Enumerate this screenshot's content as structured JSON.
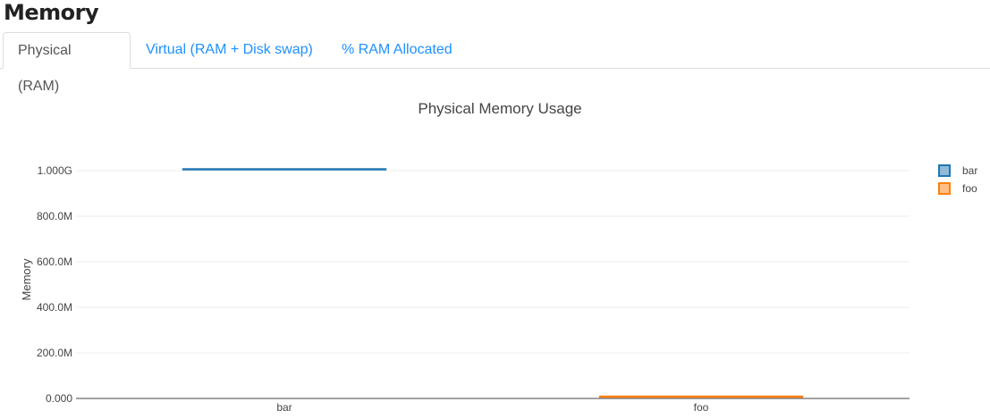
{
  "page_title": "Memory",
  "tabs": [
    {
      "label": "Physical (RAM)",
      "active": true
    },
    {
      "label": "Virtual (RAM + Disk swap)",
      "active": false
    },
    {
      "label": "% RAM Allocated",
      "active": false
    }
  ],
  "chart_data": {
    "type": "box",
    "title": "Physical Memory Usage",
    "xlabel": "",
    "ylabel": "Memory",
    "categories": [
      "bar",
      "foo"
    ],
    "series": [
      {
        "name": "bar",
        "category": "bar",
        "values": [
          1006000000
        ],
        "color": "#1f77b4"
      },
      {
        "name": "foo",
        "category": "foo",
        "values": [
          8000000
        ],
        "color": "#ff7f0e"
      }
    ],
    "yticks": [
      0,
      200000000,
      400000000,
      600000000,
      800000000,
      1000000000
    ],
    "ytick_labels": [
      "0.000",
      "200.0M",
      "400.0M",
      "600.0M",
      "800.0M",
      "1.000G"
    ],
    "grid": true,
    "legend": "right"
  }
}
